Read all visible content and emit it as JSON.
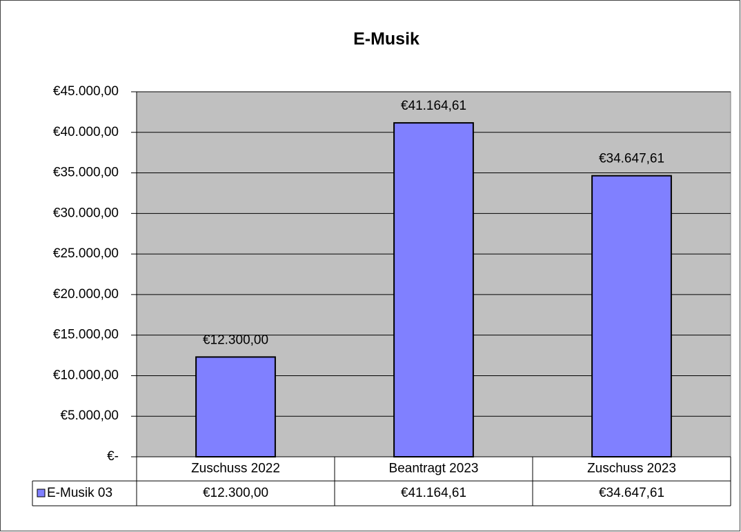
{
  "chart_data": {
    "type": "bar",
    "title": "E-Musik",
    "categories": [
      "Zuschuss 2022",
      "Beantragt 2023",
      "Zuschuss 2023"
    ],
    "series": [
      {
        "name": "E-Musik 03",
        "color": "#8080ff",
        "values": [
          12300,
          41164.61,
          34647.61
        ],
        "value_labels": [
          "€12.300,00",
          "€41.164,61",
          "€34.647,61"
        ]
      }
    ],
    "ylim": [
      0,
      45000
    ],
    "yticks": [
      {
        "value": 0,
        "label": "€-"
      },
      {
        "value": 5000,
        "label": "€5.000,00"
      },
      {
        "value": 10000,
        "label": "€10.000,00"
      },
      {
        "value": 15000,
        "label": "€15.000,00"
      },
      {
        "value": 20000,
        "label": "€20.000,00"
      },
      {
        "value": 25000,
        "label": "€25.000,00"
      },
      {
        "value": 30000,
        "label": "€30.000,00"
      },
      {
        "value": 35000,
        "label": "€35.000,00"
      },
      {
        "value": 40000,
        "label": "€40.000,00"
      },
      {
        "value": 45000,
        "label": "€45.000,00"
      }
    ],
    "grid": true,
    "plot_background": "#c0c0c0",
    "data_table": true
  }
}
